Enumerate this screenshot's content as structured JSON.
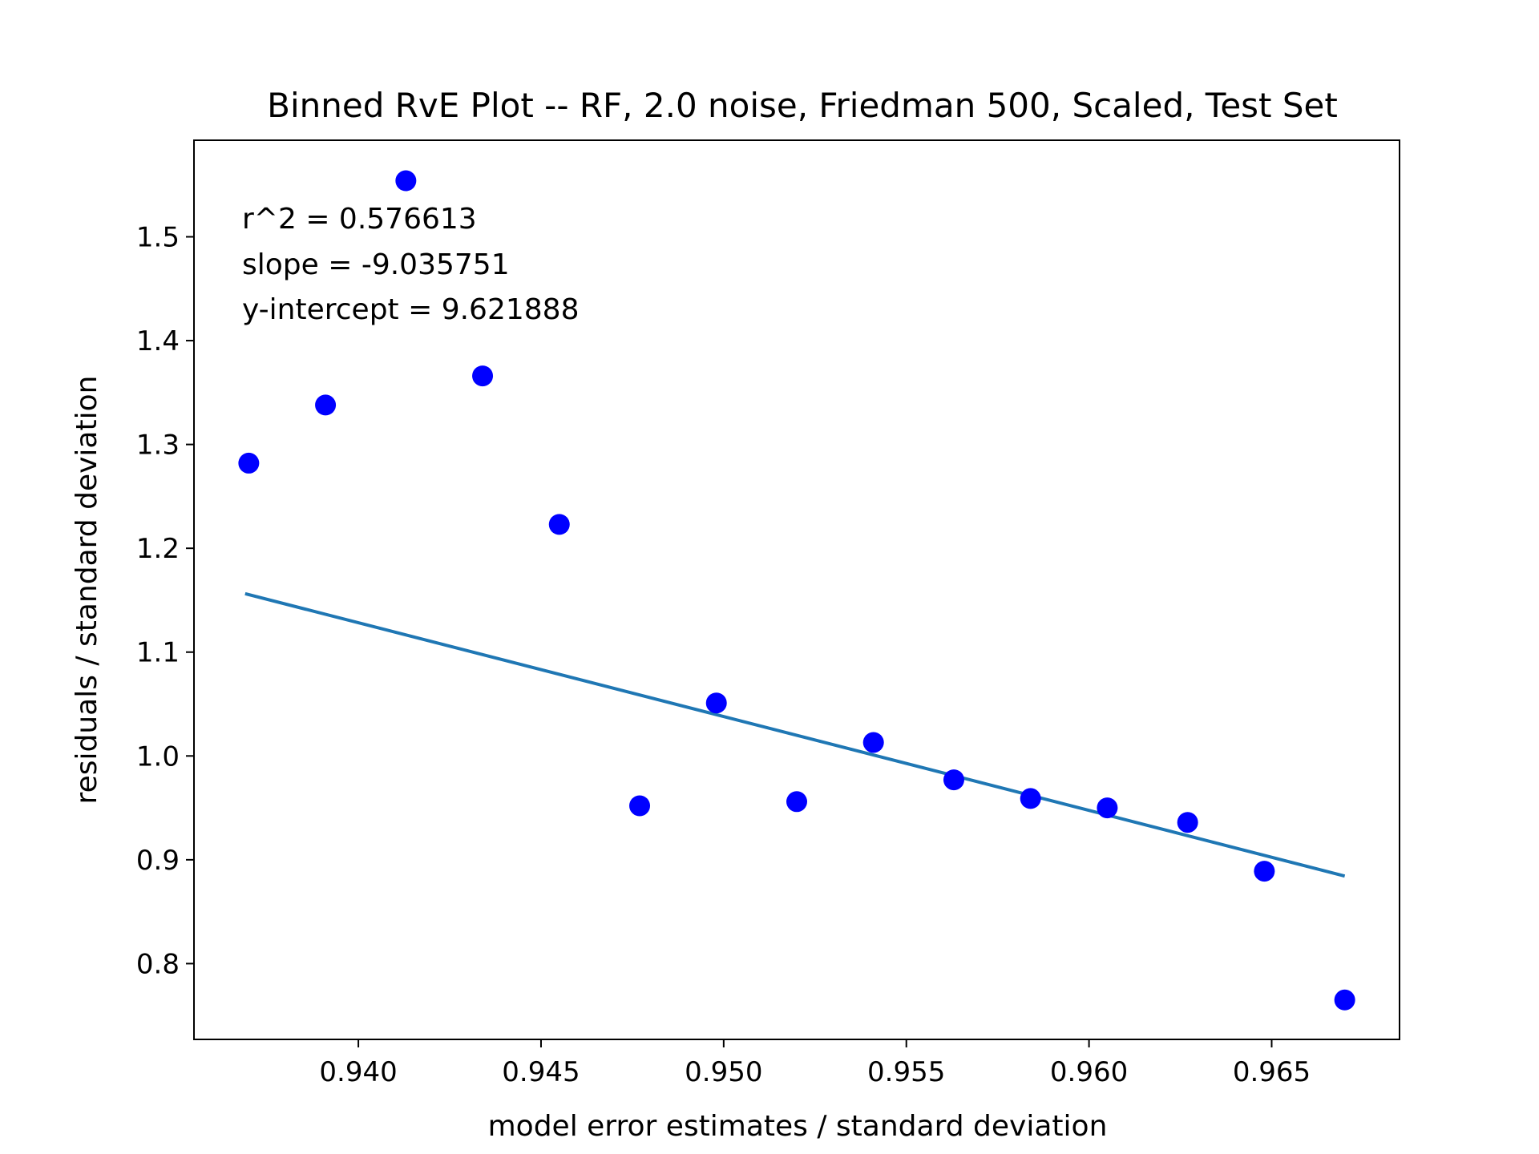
{
  "chart_data": {
    "type": "scatter",
    "title": "Binned RvE Plot -- RF, 2.0 noise, Friedman 500, Scaled, Test Set",
    "xlabel": "model error estimates / standard deviation",
    "ylabel": "residuals / standard deviation",
    "xlim": [
      0.9355,
      0.9685
    ],
    "ylim": [
      0.727,
      1.593
    ],
    "xticks": [
      {
        "value": 0.94,
        "label": "0.940"
      },
      {
        "value": 0.945,
        "label": "0.945"
      },
      {
        "value": 0.95,
        "label": "0.950"
      },
      {
        "value": 0.955,
        "label": "0.955"
      },
      {
        "value": 0.96,
        "label": "0.960"
      },
      {
        "value": 0.965,
        "label": "0.965"
      }
    ],
    "yticks": [
      {
        "value": 0.8,
        "label": "0.8"
      },
      {
        "value": 0.9,
        "label": "0.9"
      },
      {
        "value": 1.0,
        "label": "1.0"
      },
      {
        "value": 1.1,
        "label": "1.1"
      },
      {
        "value": 1.2,
        "label": "1.2"
      },
      {
        "value": 1.3,
        "label": "1.3"
      },
      {
        "value": 1.4,
        "label": "1.4"
      },
      {
        "value": 1.5,
        "label": "1.5"
      }
    ],
    "grid": false,
    "series": [
      {
        "marker_color": "#0000ff",
        "x": [
          0.937,
          0.9391,
          0.9413,
          0.9434,
          0.9455,
          0.9477,
          0.9498,
          0.952,
          0.9541,
          0.9563,
          0.9584,
          0.9605,
          0.9627,
          0.9648,
          0.967
        ],
        "y": [
          1.282,
          1.338,
          1.554,
          1.366,
          1.223,
          0.952,
          1.051,
          0.956,
          1.013,
          0.977,
          0.959,
          0.95,
          0.936,
          0.889,
          0.765
        ]
      }
    ],
    "fit_line": {
      "color": "#1f77b4",
      "slope": -9.035751,
      "intercept": 9.621888,
      "x_range": [
        0.9369,
        0.967
      ]
    },
    "annotations": [
      "r^2 = 0.576613",
      "slope = -9.035751",
      "y-intercept = 9.621888"
    ]
  }
}
